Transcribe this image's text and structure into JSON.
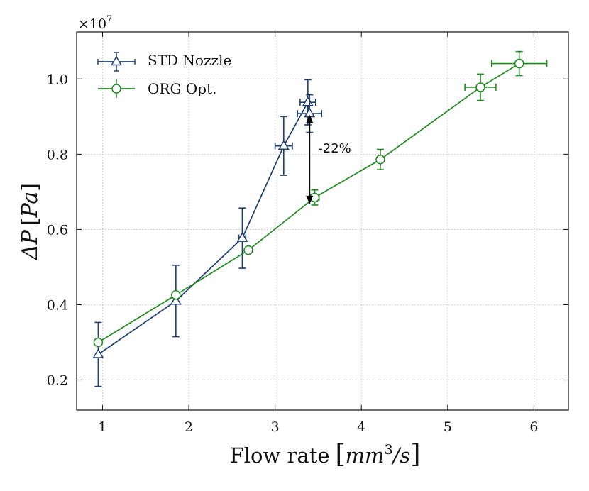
{
  "chart_data": {
    "type": "line",
    "title": "",
    "xlabel": "Flow rate [mm³/s]",
    "xlabel_parts": {
      "main": "Flow rate",
      "unit_base": "mm",
      "unit_exp": "3",
      "unit_tail": "/s"
    },
    "ylabel": "ΔP [Pa]",
    "ylabel_parts": {
      "symbol": "ΔP",
      "unit": "Pa"
    },
    "y_scale_label": "×10⁷",
    "y_scale_parts": {
      "base": "×10",
      "exp": "7"
    },
    "xlim": [
      0.7,
      6.4
    ],
    "ylim": [
      0.12,
      1.125
    ],
    "x_ticks": [
      1,
      2,
      3,
      4,
      5,
      6
    ],
    "y_ticks": [
      0.2,
      0.4,
      0.6,
      0.8,
      1.0
    ],
    "y_tick_labels": [
      "0.2",
      "0.4",
      "0.6",
      "0.8",
      "1.0"
    ],
    "grid": true,
    "legend_position": "top-left",
    "series": [
      {
        "name": "STD Nozzle",
        "color": "#1f3f73",
        "marker": "triangle",
        "points": [
          {
            "x": 0.95,
            "y": 0.268,
            "xerr": 0.0,
            "yerr": 0.085
          },
          {
            "x": 1.85,
            "y": 0.41,
            "xerr": 0.0,
            "yerr": 0.095
          },
          {
            "x": 2.62,
            "y": 0.577,
            "xerr": 0.04,
            "yerr": 0.08
          },
          {
            "x": 3.1,
            "y": 0.822,
            "xerr": 0.1,
            "yerr": 0.078
          },
          {
            "x": 3.38,
            "y": 0.938,
            "xerr": 0.09,
            "yerr": 0.06
          },
          {
            "x": 3.4,
            "y": 0.908,
            "xerr": 0.14,
            "yerr": 0.05
          }
        ]
      },
      {
        "name": "ORG Opt.",
        "color": "#1f8a1f",
        "marker": "circle",
        "points": [
          {
            "x": 0.95,
            "y": 0.3,
            "xerr": 0.0,
            "yerr": 0.0
          },
          {
            "x": 1.85,
            "y": 0.426,
            "xerr": 0.0,
            "yerr": 0.0
          },
          {
            "x": 2.69,
            "y": 0.545,
            "xerr": 0.0,
            "yerr": 0.0
          },
          {
            "x": 3.46,
            "y": 0.685,
            "xerr": 0.05,
            "yerr": 0.02
          },
          {
            "x": 4.22,
            "y": 0.786,
            "xerr": 0.0,
            "yerr": 0.027
          },
          {
            "x": 5.38,
            "y": 0.978,
            "xerr": 0.18,
            "yerr": 0.035
          },
          {
            "x": 5.83,
            "y": 1.041,
            "xerr": 0.32,
            "yerr": 0.032
          }
        ]
      }
    ],
    "annotations": [
      {
        "text": "-22%",
        "x_from": 3.4,
        "y_from": 0.905,
        "x_to": 3.4,
        "y_to": 0.667,
        "style": "double-arrow"
      }
    ]
  }
}
